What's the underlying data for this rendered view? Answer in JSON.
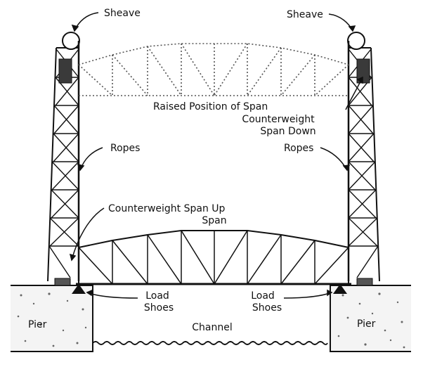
{
  "labels": {
    "sheave_left": "Sheave",
    "sheave_right": "Sheave",
    "raised_position": "Raised Position of Span",
    "counterweight_down_line1": "Counterweight",
    "counterweight_down_line2": "Span Down",
    "ropes_left": "Ropes",
    "ropes_right": "Ropes",
    "counterweight_up": "Counterweight Span Up",
    "span": "Span",
    "load_shoes_left_line1": "Load",
    "load_shoes_left_line2": "Shoes",
    "load_shoes_right_line1": "Load",
    "load_shoes_right_line2": "Shoes",
    "pier_left": "Pier",
    "pier_right": "Pier",
    "channel": "Channel"
  }
}
